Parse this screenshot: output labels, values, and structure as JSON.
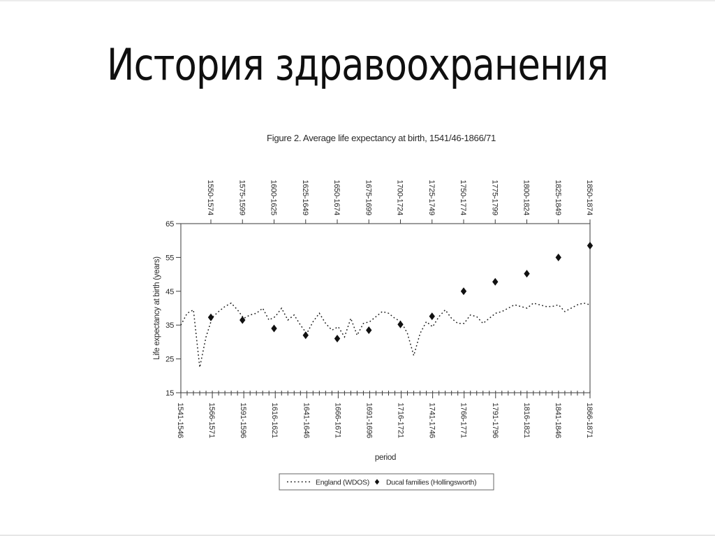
{
  "slide": {
    "title": "История здравоохранения"
  },
  "colors": {
    "background": "#ffffff",
    "title_ink": "#0f0f0f",
    "chart_ink": "#2a2a2a",
    "series_ink": "#1c1c1c",
    "axis_line": "#5a5a5a"
  },
  "chart_data": {
    "type": "line",
    "title": "Figure 2.  Average life expectancy at birth, 1541/46-1866/71",
    "xlabel": "period",
    "ylabel": "Life expectancy at birth (years)",
    "ylim": [
      15,
      65
    ],
    "y_tick_labels": [
      "65",
      "55",
      "45",
      "35",
      "25",
      "15"
    ],
    "grid": false,
    "legend_position": "bottom",
    "x_start_year": 1541,
    "x_step_years": 5,
    "bottom_tick_labels": [
      "1541-1546",
      "1566-1571",
      "1591-1596",
      "1616-1621",
      "1641-1646",
      "1666-1671",
      "1691-1696",
      "1716-1721",
      "1741-1746",
      "1766-1771",
      "1791-1796",
      "1816-1821",
      "1841-1846",
      "1866-1871"
    ],
    "top_tick_labels": [
      "1550-1574",
      "1575-1599",
      "1600-1625",
      "1625-1649",
      "1650-1674",
      "1675-1699",
      "1700-1724",
      "1725-1749",
      "1750-1774",
      "1775-1799",
      "1800-1824",
      "1825-1849",
      "1850-1874"
    ],
    "series": [
      {
        "name": "England (WDOS)",
        "style": "dotted-line",
        "x_years": "1541 to 1866 step 5 (start of quinquennium)",
        "values": [
          35,
          38.5,
          39.5,
          22.5,
          31.5,
          37.3,
          39,
          40.5,
          41.5,
          39.5,
          37,
          38,
          38.5,
          40,
          36.5,
          37.5,
          40,
          36.5,
          38,
          35,
          32.5,
          36,
          38.5,
          35.5,
          33.5,
          34.5,
          31.5,
          37,
          32,
          35.5,
          36,
          37.5,
          39,
          38.5,
          37,
          36,
          32.5,
          26,
          32.5,
          36,
          34.5,
          37.5,
          39.5,
          37,
          35.5,
          35.5,
          38,
          37.5,
          35.5,
          37,
          38.5,
          39,
          40,
          41,
          40.5,
          40,
          41.5,
          41,
          40.5,
          40.5,
          41,
          39,
          40,
          41,
          41.5,
          41
        ]
      },
      {
        "name": "Ducal families (Hollingsworth)",
        "style": "diamond-scatter",
        "periods": [
          "1550-1574",
          "1575-1599",
          "1600-1625",
          "1625-1649",
          "1650-1674",
          "1675-1699",
          "1700-1724",
          "1725-1749",
          "1750-1774",
          "1775-1799",
          "1800-1824",
          "1825-1849",
          "1850-1874"
        ],
        "values": [
          37.3,
          36.5,
          34,
          32,
          31,
          33.5,
          35.2,
          37.6,
          45,
          47.8,
          50.2,
          55,
          58.5
        ]
      }
    ],
    "legend": [
      "England (WDOS)",
      "Ducal families (Hollingsworth)"
    ]
  }
}
